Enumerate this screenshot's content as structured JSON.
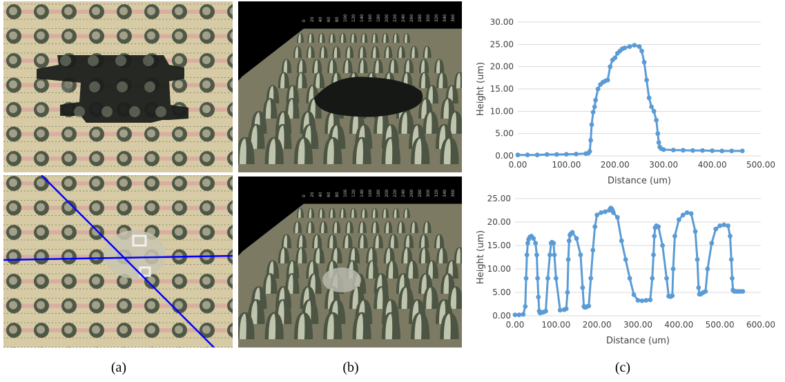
{
  "captions": {
    "a": "(a)",
    "b": "(b)",
    "c": "(c)"
  },
  "colors": {
    "board_base": "#d6cba4",
    "trace_pink": "#d9a6a0",
    "bump_dark": "#4f5846",
    "bump_light": "#b6b39a",
    "defect_dark": "#1c1f1c",
    "line_blue": "#0000ff",
    "bg_3d": "#000000",
    "pillar_light": "#d4d9c0",
    "pillar_dark": "#4c5443",
    "series_blue": "#5b9bd5",
    "grid": "#d9d9d9"
  },
  "panel_b": {
    "top_scale": [
      "0",
      "20",
      "40",
      "60",
      "80",
      "100",
      "120",
      "140",
      "160",
      "180",
      "200",
      "220",
      "240",
      "260",
      "280",
      "300",
      "320",
      "340",
      "360"
    ],
    "bottom_scale": [
      "0",
      "20",
      "40",
      "60",
      "80",
      "100",
      "120",
      "140",
      "160",
      "180",
      "200",
      "220",
      "240",
      "260",
      "280",
      "300",
      "320",
      "340",
      "360"
    ]
  },
  "chart_data": [
    {
      "type": "scatter",
      "xlabel": "Distance (um)",
      "ylabel": "Height (um)",
      "xlim": [
        0,
        500
      ],
      "ylim": [
        0,
        30
      ],
      "xticks": [
        "0.00",
        "100.00",
        "200.00",
        "300.00",
        "400.00",
        "500.00"
      ],
      "yticks": [
        "0.00",
        "5.00",
        "10.00",
        "15.00",
        "20.00",
        "25.00",
        "30.00"
      ],
      "series": [
        {
          "x": [
            0,
            20,
            40,
            60,
            80,
            100,
            120,
            140,
            145,
            148,
            150,
            152,
            155,
            158,
            160,
            165,
            170,
            175,
            180,
            185,
            190,
            195,
            200,
            205,
            210,
            215,
            220,
            230,
            240,
            250,
            255,
            260,
            265,
            270,
            275,
            280,
            285,
            288,
            290,
            292,
            295,
            300,
            320,
            340,
            360,
            380,
            400,
            420,
            440,
            462
          ],
          "y": [
            0.2,
            0.2,
            0.2,
            0.3,
            0.3,
            0.35,
            0.4,
            0.5,
            0.6,
            1.0,
            3.5,
            7.0,
            9.8,
            11.0,
            12.5,
            15.0,
            16.0,
            16.5,
            16.8,
            17.0,
            20.0,
            21.5,
            22.0,
            23.0,
            23.5,
            24.0,
            24.2,
            24.5,
            24.8,
            24.5,
            23.5,
            21.0,
            17.0,
            13.0,
            11.0,
            10.0,
            8.0,
            5.0,
            3.0,
            2.0,
            1.6,
            1.4,
            1.3,
            1.25,
            1.2,
            1.2,
            1.15,
            1.1,
            1.1,
            1.1
          ]
        }
      ]
    },
    {
      "type": "scatter",
      "xlabel": "Distance (um)",
      "ylabel": "Height (um)",
      "xlim": [
        0,
        600
      ],
      "ylim": [
        0,
        25
      ],
      "xticks": [
        "0.00",
        "100.00",
        "200.00",
        "300.00",
        "400.00",
        "500.00",
        "600.00"
      ],
      "yticks": [
        "0.00",
        "5.00",
        "10.00",
        "15.00",
        "20.00",
        "25.00"
      ],
      "series": [
        {
          "x": [
            0,
            10,
            20,
            25,
            27,
            29,
            31,
            33,
            36,
            40,
            45,
            50,
            53,
            55,
            57,
            59,
            61,
            65,
            70,
            75,
            80,
            85,
            88,
            90,
            92,
            94,
            96,
            100,
            110,
            120,
            125,
            128,
            130,
            132,
            134,
            136,
            140,
            150,
            160,
            165,
            168,
            170,
            172,
            174,
            176,
            180,
            185,
            190,
            195,
            200,
            210,
            220,
            230,
            232,
            234,
            236,
            238,
            240,
            250,
            260,
            270,
            280,
            290,
            300,
            310,
            320,
            330,
            335,
            338,
            340,
            342,
            345,
            350,
            360,
            370,
            375,
            378,
            380,
            382,
            384,
            386,
            390,
            400,
            410,
            420,
            430,
            440,
            445,
            448,
            450,
            452,
            454,
            456,
            460,
            465,
            470,
            480,
            490,
            500,
            510,
            520,
            525,
            528,
            530,
            532,
            534,
            536,
            540,
            545,
            550,
            556
          ],
          "y": [
            0.2,
            0.2,
            0.3,
            2,
            8,
            13,
            15.5,
            16.3,
            16.8,
            17,
            16.5,
            15.5,
            13,
            8,
            4,
            1,
            0.6,
            0.7,
            0.8,
            1,
            8,
            13,
            15.5,
            15.7,
            15.6,
            15.5,
            13,
            8,
            1.2,
            1.3,
            1.5,
            5,
            12,
            16,
            17.2,
            17.5,
            17.8,
            16.5,
            13,
            6,
            2,
            1.8,
            1.8,
            1.9,
            2,
            2.1,
            8,
            14,
            19,
            21.5,
            22,
            22.2,
            22.5,
            22.8,
            23,
            22.8,
            22.5,
            22,
            21,
            16,
            12,
            8,
            4.5,
            3.3,
            3.2,
            3.3,
            3.4,
            8,
            13,
            17,
            18.8,
            19.2,
            19,
            15,
            8,
            4.2,
            4.1,
            4.1,
            4.2,
            4.3,
            10,
            17,
            20.5,
            21.5,
            22,
            21.8,
            18,
            12,
            6,
            4.6,
            4.6,
            4.7,
            4.8,
            5,
            5.2,
            10,
            15.5,
            18.5,
            19.2,
            19.4,
            19.2,
            17,
            12,
            8,
            5.5,
            5.3,
            5.2,
            5.2,
            5.2,
            5.2,
            5.2
          ]
        }
      ]
    }
  ]
}
